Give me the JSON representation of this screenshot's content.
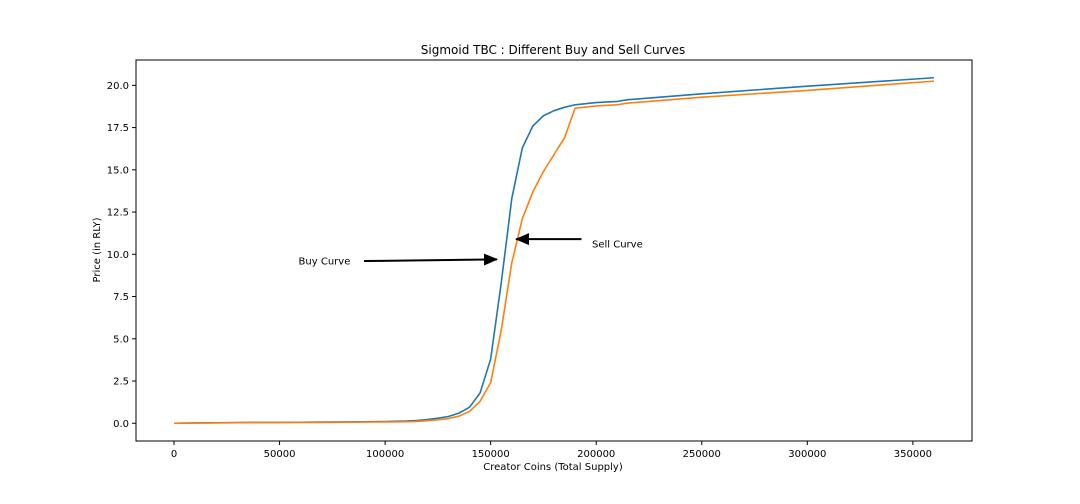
{
  "chart_data": {
    "type": "line",
    "title": "Sigmoid TBC : Different Buy and Sell Curves",
    "xlabel": "Creator Coins (Total Supply)",
    "ylabel": "Price (in RLY)",
    "xlim": [
      -18000,
      378000
    ],
    "ylim": [
      -1.05,
      21.5
    ],
    "xticks": [
      0,
      50000,
      100000,
      150000,
      200000,
      250000,
      300000,
      350000
    ],
    "xtick_labels": [
      "0",
      "50000",
      "100000",
      "150000",
      "200000",
      "250000",
      "300000",
      "350000"
    ],
    "yticks": [
      0,
      2.5,
      5,
      7.5,
      10,
      12.5,
      15,
      17.5,
      20
    ],
    "ytick_labels": [
      "0.0",
      "2.5",
      "5.0",
      "7.5",
      "10.0",
      "12.5",
      "15.0",
      "17.5",
      "20.0"
    ],
    "grid": false,
    "series": [
      {
        "name": "Buy Curve",
        "color": "#1f77b4",
        "x": [
          0,
          10000,
          20000,
          30000,
          40000,
          50000,
          60000,
          70000,
          80000,
          90000,
          100000,
          110000,
          115000,
          120000,
          125000,
          130000,
          135000,
          140000,
          145000,
          150000,
          155000,
          160000,
          165000,
          170000,
          175000,
          180000,
          185000,
          190000,
          200000,
          210000,
          215000,
          250000,
          300000,
          360000
        ],
        "y": [
          0,
          0.02,
          0.03,
          0.04,
          0.05,
          0.05,
          0.06,
          0.07,
          0.08,
          0.09,
          0.1,
          0.13,
          0.16,
          0.22,
          0.3,
          0.4,
          0.6,
          0.95,
          1.8,
          3.8,
          8.3,
          13.3,
          16.3,
          17.6,
          18.2,
          18.5,
          18.7,
          18.85,
          18.98,
          19.05,
          19.15,
          19.5,
          19.95,
          20.45
        ]
      },
      {
        "name": "Sell Curve",
        "color": "#ff7f0e",
        "x": [
          0,
          10000,
          20000,
          30000,
          40000,
          50000,
          60000,
          70000,
          80000,
          90000,
          100000,
          110000,
          115000,
          120000,
          125000,
          130000,
          135000,
          140000,
          145000,
          150000,
          155000,
          160000,
          165000,
          170000,
          175000,
          180000,
          185000,
          190000,
          200000,
          210000,
          215000,
          250000,
          300000,
          360000
        ],
        "y": [
          0,
          0.01,
          0.02,
          0.03,
          0.04,
          0.04,
          0.05,
          0.05,
          0.06,
          0.07,
          0.08,
          0.09,
          0.11,
          0.15,
          0.2,
          0.28,
          0.42,
          0.7,
          1.3,
          2.4,
          5.5,
          9.5,
          12.1,
          13.7,
          14.9,
          15.9,
          16.9,
          18.65,
          18.78,
          18.85,
          18.95,
          19.3,
          19.7,
          20.25
        ]
      }
    ],
    "annotations": [
      {
        "text": "Buy Curve",
        "text_xy": [
          59000,
          9.6
        ],
        "arrow_from": [
          90000,
          9.6
        ],
        "arrow_to": [
          153000,
          9.7
        ]
      },
      {
        "text": "Sell Curve",
        "text_xy": [
          198000,
          10.6
        ],
        "arrow_from": [
          193000,
          10.9
        ],
        "arrow_to": [
          162000,
          10.9
        ]
      }
    ]
  }
}
